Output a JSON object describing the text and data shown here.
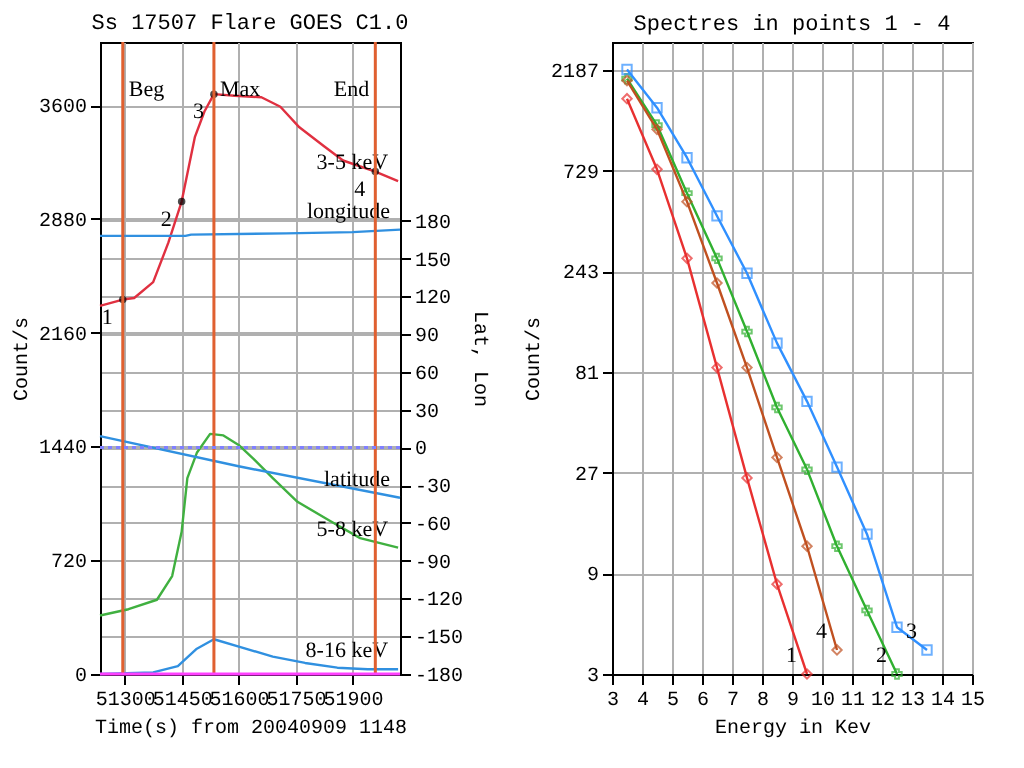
{
  "chart_data": [
    {
      "type": "line",
      "title": "Ss 17507 Flare GOES C1.0",
      "xlabel": "Time(s) from 20040909 1148",
      "ylabel": "Count/s",
      "y2label": "Lat, Lon",
      "xlim": [
        51235,
        52025
      ],
      "xticks": [
        51300,
        51450,
        51600,
        51750,
        51900
      ],
      "ylim": [
        0,
        4000
      ],
      "yticks": [
        0,
        720,
        1440,
        2160,
        2880,
        3600
      ],
      "y2lim": [
        -180,
        322
      ],
      "y2ticks": [
        -180,
        -150,
        -120,
        -90,
        -60,
        -30,
        0,
        30,
        60,
        90,
        120,
        150,
        180
      ],
      "grid": true,
      "series": [
        {
          "name": "3-5 keV",
          "color": "#e03040",
          "x": [
            51235,
            51295,
            51325,
            51375,
            51415,
            51450,
            51485,
            51510,
            51535,
            51590,
            51660,
            51710,
            51760,
            51825,
            51875,
            51960,
            52020
          ],
          "values": [
            2330,
            2370,
            2380,
            2480,
            2730,
            2990,
            3400,
            3560,
            3670,
            3660,
            3650,
            3590,
            3460,
            3340,
            3250,
            3180,
            3120
          ]
        },
        {
          "name": "longitude",
          "color": "#3090e0",
          "axis": "y2",
          "x": [
            51235,
            51460,
            51475,
            51725,
            51900,
            52025
          ],
          "values": [
            168,
            168,
            169,
            170,
            171,
            173
          ]
        },
        {
          "name": "5-8 keV",
          "color": "#40b040",
          "x": [
            51235,
            51310,
            51385,
            51425,
            51450,
            51465,
            51490,
            51525,
            51560,
            51600,
            51640,
            51690,
            51755,
            51840,
            51920,
            52020
          ],
          "values": [
            370,
            410,
            470,
            620,
            900,
            1240,
            1400,
            1520,
            1510,
            1450,
            1360,
            1240,
            1090,
            970,
            860,
            800
          ]
        },
        {
          "name": "latitude",
          "color": "#3090e0",
          "axis": "y2",
          "x": [
            51235,
            51600,
            52025
          ],
          "values": [
            9,
            -15,
            -40
          ]
        },
        {
          "name": "8-16 keV",
          "color": "#3090e0",
          "x": [
            51235,
            51375,
            51440,
            51490,
            51535,
            51605,
            51690,
            51775,
            51860,
            51940,
            52020
          ],
          "values": [
            0,
            10,
            50,
            160,
            220,
            170,
            110,
            70,
            40,
            30,
            30
          ]
        },
        {
          "type": "scatter",
          "color": "#000000",
          "marker": "circle",
          "x": [
            51295,
            51450,
            51535,
            51960
          ],
          "values": [
            2370,
            2990,
            3670,
            3180
          ]
        }
      ],
      "annotations": [
        {
          "text": "1",
          "x": 51295,
          "y": 2370
        },
        {
          "text": "2",
          "x": 51450,
          "y": 2990
        },
        {
          "text": "3",
          "x": 51535,
          "y": 3670
        },
        {
          "text": "4",
          "x": 51960,
          "y": 3180
        }
      ],
      "ref_lines": [
        {
          "axis": "x",
          "value": 51295,
          "label": "Beg",
          "color": "#e06030"
        },
        {
          "axis": "x",
          "value": 51535,
          "label": "Max",
          "color": "#e06030"
        },
        {
          "axis": "x",
          "value": 51960,
          "label": "End",
          "color": "#e06030"
        },
        {
          "axis": "y2",
          "value": 0,
          "color": "#8080ff",
          "line_style": "dotted"
        },
        {
          "axis": "y",
          "value": 0,
          "color": "#ff40ff"
        }
      ]
    },
    {
      "type": "line",
      "title": "Spectres in points 1 - 4",
      "xlabel": "Energy in Kev",
      "ylabel": "Count/s",
      "xlim": [
        3,
        15
      ],
      "xticks": [
        3,
        4,
        5,
        6,
        7,
        8,
        9,
        10,
        11,
        12,
        13,
        14,
        15
      ],
      "ylim": [
        3,
        2970
      ],
      "yticks": [
        3,
        9,
        27,
        81,
        243,
        729,
        2187
      ],
      "log": true,
      "grid": true,
      "series": [
        {
          "name": "1",
          "color": "#e83030",
          "marker": "diamond",
          "x": [
            3.5,
            4.5,
            5.5,
            6.5,
            7.5,
            8.5,
            9.5
          ],
          "values": [
            1600,
            740,
            280,
            85,
            25.5,
            8,
            3
          ]
        },
        {
          "name": "2",
          "color": "#30b030",
          "marker": "cross",
          "x": [
            3.5,
            4.5,
            5.5,
            6.5,
            7.5,
            8.5,
            9.5,
            10.5,
            11.5,
            12.5
          ],
          "values": [
            1990,
            1200,
            570,
            280,
            126,
            55,
            28,
            12.1,
            6,
            3
          ]
        },
        {
          "name": "3",
          "color": "#3090ff",
          "marker": "square",
          "x": [
            3.5,
            4.5,
            5.5,
            6.5,
            7.5,
            8.5,
            9.5,
            10.5,
            11.5,
            12.5,
            13.5
          ],
          "values": [
            2200,
            1450,
            840,
            445,
            238,
            111,
            58.8,
            28.7,
            13.8,
            5,
            3.9
          ]
        },
        {
          "name": "4",
          "color": "#c05020",
          "marker": "diamond",
          "x": [
            3.5,
            4.5,
            5.5,
            6.5,
            7.5,
            8.5,
            9.5,
            10.5
          ],
          "values": [
            1950,
            1145,
            520,
            214,
            85,
            31.9,
            12.1,
            3.9
          ]
        }
      ]
    }
  ]
}
